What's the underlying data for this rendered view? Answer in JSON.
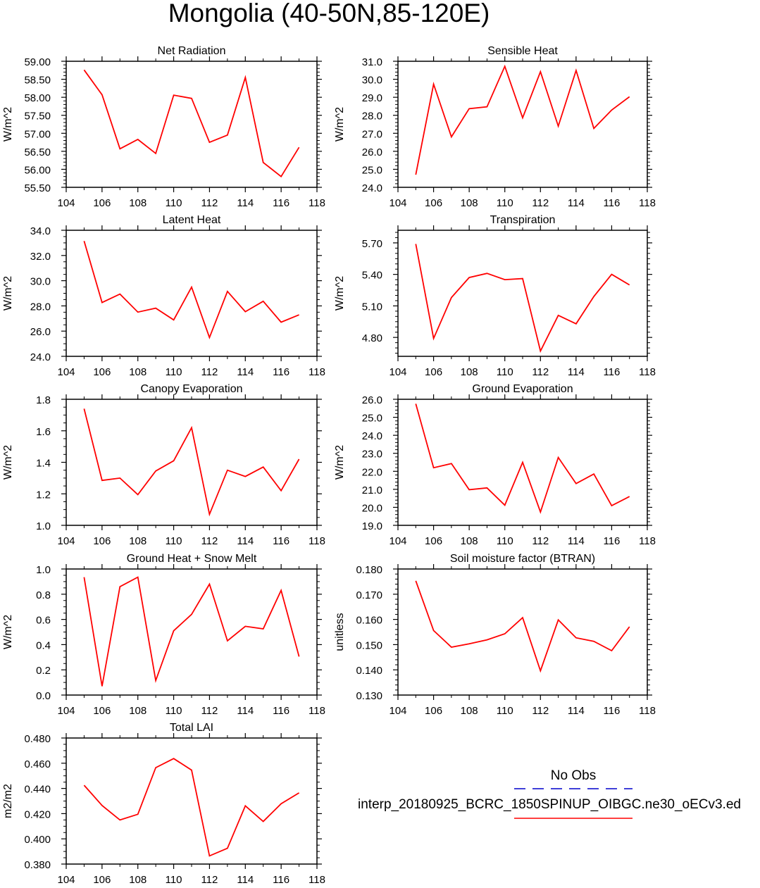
{
  "title": "Mongolia (40-50N,85-120E)",
  "legend": {
    "obs_label": "No Obs",
    "model_label": "interp_20180925_BCRC_1850SPINUP_OIBGC.ne30_oECv3.ed",
    "obs_color": "#0000cc",
    "model_color": "#ff0000"
  },
  "chart_data": [
    {
      "type": "line",
      "title": "Net Radiation",
      "ylabel": "W/m^2",
      "xlabel": "",
      "xlim": [
        104,
        118
      ],
      "xticks": [
        104,
        106,
        108,
        110,
        112,
        114,
        116,
        118
      ],
      "ylim": [
        55.5,
        59.0
      ],
      "yticks": [
        55.5,
        56.0,
        56.5,
        57.0,
        57.5,
        58.0,
        58.5,
        59.0
      ],
      "ytick_labels": [
        "55.50",
        "56.00",
        "56.50",
        "57.00",
        "57.50",
        "58.00",
        "58.50",
        "59.00"
      ],
      "yminor": 5,
      "x": [
        105,
        106,
        107,
        108,
        109,
        110,
        111,
        112,
        113,
        114,
        115,
        116,
        117
      ],
      "series": [
        {
          "name": "model",
          "color": "#ff0000",
          "values": [
            58.76,
            58.07,
            56.57,
            56.83,
            56.44,
            58.06,
            57.97,
            56.75,
            56.95,
            58.55,
            56.19,
            55.8,
            56.61
          ]
        }
      ]
    },
    {
      "type": "line",
      "title": "Sensible Heat",
      "ylabel": "W/m^2",
      "xlabel": "",
      "xlim": [
        104,
        118
      ],
      "xticks": [
        104,
        106,
        108,
        110,
        112,
        114,
        116,
        118
      ],
      "ylim": [
        24.0,
        31.0
      ],
      "yticks": [
        24,
        25,
        26,
        27,
        28,
        29,
        30,
        31
      ],
      "ytick_labels": [
        "24.0",
        "25.0",
        "26.0",
        "27.0",
        "28.0",
        "29.0",
        "30.0",
        "31.0"
      ],
      "yminor": 5,
      "x": [
        105,
        106,
        107,
        108,
        109,
        110,
        111,
        112,
        113,
        114,
        115,
        116,
        117
      ],
      "series": [
        {
          "name": "model",
          "color": "#ff0000",
          "values": [
            24.7,
            29.73,
            26.8,
            28.37,
            28.47,
            30.72,
            27.86,
            30.42,
            27.4,
            30.49,
            27.27,
            28.29,
            29.03
          ]
        }
      ]
    },
    {
      "type": "line",
      "title": "Latent Heat",
      "ylabel": "W/m^2",
      "xlabel": "",
      "xlim": [
        104,
        118
      ],
      "xticks": [
        104,
        106,
        108,
        110,
        112,
        114,
        116,
        118
      ],
      "ylim": [
        24.0,
        34.0
      ],
      "yticks": [
        24,
        26,
        28,
        30,
        32,
        34
      ],
      "ytick_labels": [
        "24.0",
        "26.0",
        "28.0",
        "30.0",
        "32.0",
        "34.0"
      ],
      "yminor": 4,
      "x": [
        105,
        106,
        107,
        108,
        109,
        110,
        111,
        112,
        113,
        114,
        115,
        116,
        117
      ],
      "series": [
        {
          "name": "model",
          "color": "#ff0000",
          "values": [
            33.15,
            28.27,
            28.94,
            27.51,
            27.82,
            26.89,
            29.49,
            25.49,
            29.15,
            27.54,
            28.37,
            26.71,
            27.29
          ]
        }
      ]
    },
    {
      "type": "line",
      "title": "Transpiration",
      "ylabel": "W/m^2",
      "xlabel": "",
      "xlim": [
        104,
        118
      ],
      "xticks": [
        104,
        106,
        108,
        110,
        112,
        114,
        116,
        118
      ],
      "ylim": [
        4.62,
        5.82
      ],
      "yticks": [
        4.8,
        5.1,
        5.4,
        5.7
      ],
      "ytick_labels": [
        "4.80",
        "5.10",
        "5.40",
        "5.70"
      ],
      "yminor": 6,
      "x": [
        105,
        106,
        107,
        108,
        109,
        110,
        111,
        112,
        113,
        114,
        115,
        116,
        117
      ],
      "series": [
        {
          "name": "model",
          "color": "#ff0000",
          "values": [
            5.69,
            4.79,
            5.18,
            5.37,
            5.41,
            5.35,
            5.36,
            4.67,
            5.01,
            4.93,
            5.19,
            5.4,
            5.3
          ]
        }
      ]
    },
    {
      "type": "line",
      "title": "Canopy Evaporation",
      "ylabel": "W/m^2",
      "xlabel": "",
      "xlim": [
        104,
        118
      ],
      "xticks": [
        104,
        106,
        108,
        110,
        112,
        114,
        116,
        118
      ],
      "ylim": [
        1.0,
        1.8
      ],
      "yticks": [
        1.0,
        1.2,
        1.4,
        1.6,
        1.8
      ],
      "ytick_labels": [
        "1.0",
        "1.2",
        "1.4",
        "1.6",
        "1.8"
      ],
      "yminor": 4,
      "x": [
        105,
        106,
        107,
        108,
        109,
        110,
        111,
        112,
        113,
        114,
        115,
        116,
        117
      ],
      "series": [
        {
          "name": "model",
          "color": "#ff0000",
          "values": [
            1.74,
            1.285,
            1.3,
            1.195,
            1.345,
            1.41,
            1.62,
            1.07,
            1.35,
            1.31,
            1.37,
            1.22,
            1.42
          ]
        }
      ]
    },
    {
      "type": "line",
      "title": "Ground Evaporation",
      "ylabel": "W/m^2",
      "xlabel": "",
      "xlim": [
        104,
        118
      ],
      "xticks": [
        104,
        106,
        108,
        110,
        112,
        114,
        116,
        118
      ],
      "ylim": [
        19.0,
        26.0
      ],
      "yticks": [
        19,
        20,
        21,
        22,
        23,
        24,
        25,
        26
      ],
      "ytick_labels": [
        "19.0",
        "20.0",
        "21.0",
        "22.0",
        "23.0",
        "24.0",
        "25.0",
        "26.0"
      ],
      "yminor": 5,
      "x": [
        105,
        106,
        107,
        108,
        109,
        110,
        111,
        112,
        113,
        114,
        115,
        116,
        117
      ],
      "series": [
        {
          "name": "model",
          "color": "#ff0000",
          "values": [
            25.75,
            22.2,
            22.43,
            20.98,
            21.08,
            20.12,
            22.5,
            19.74,
            22.77,
            21.32,
            21.85,
            20.09,
            20.6
          ]
        }
      ]
    },
    {
      "type": "line",
      "title": "Ground Heat + Snow Melt",
      "ylabel": "W/m^2",
      "xlabel": "",
      "xlim": [
        104,
        118
      ],
      "xticks": [
        104,
        106,
        108,
        110,
        112,
        114,
        116,
        118
      ],
      "ylim": [
        0.0,
        1.0
      ],
      "yticks": [
        0.0,
        0.2,
        0.4,
        0.6,
        0.8,
        1.0
      ],
      "ytick_labels": [
        "0.0",
        "0.2",
        "0.4",
        "0.6",
        "0.8",
        "1.0"
      ],
      "yminor": 4,
      "x": [
        105,
        106,
        107,
        108,
        109,
        110,
        111,
        112,
        113,
        114,
        115,
        116,
        117
      ],
      "series": [
        {
          "name": "model",
          "color": "#ff0000",
          "values": [
            0.935,
            0.07,
            0.86,
            0.935,
            0.115,
            0.51,
            0.64,
            0.88,
            0.43,
            0.545,
            0.525,
            0.83,
            0.305
          ]
        }
      ]
    },
    {
      "type": "line",
      "title": "Soil moisture factor (BTRAN)",
      "ylabel": "unitless",
      "xlabel": "",
      "xlim": [
        104,
        118
      ],
      "xticks": [
        104,
        106,
        108,
        110,
        112,
        114,
        116,
        118
      ],
      "ylim": [
        0.13,
        0.18
      ],
      "yticks": [
        0.13,
        0.14,
        0.15,
        0.16,
        0.17,
        0.18
      ],
      "ytick_labels": [
        "0.130",
        "0.140",
        "0.150",
        "0.160",
        "0.170",
        "0.180"
      ],
      "yminor": 5,
      "x": [
        105,
        106,
        107,
        108,
        109,
        110,
        111,
        112,
        113,
        114,
        115,
        116,
        117
      ],
      "series": [
        {
          "name": "model",
          "color": "#ff0000",
          "values": [
            0.1753,
            0.1556,
            0.149,
            0.1503,
            0.1519,
            0.1543,
            0.1607,
            0.1396,
            0.1598,
            0.1527,
            0.1513,
            0.1476,
            0.1571
          ]
        }
      ]
    },
    {
      "type": "line",
      "title": "Total LAI",
      "ylabel": "m2/m2",
      "xlabel": "",
      "xlim": [
        104,
        118
      ],
      "xticks": [
        104,
        106,
        108,
        110,
        112,
        114,
        116,
        118
      ],
      "ylim": [
        0.38,
        0.48
      ],
      "yticks": [
        0.38,
        0.4,
        0.42,
        0.44,
        0.46,
        0.48
      ],
      "ytick_labels": [
        "0.380",
        "0.400",
        "0.420",
        "0.440",
        "0.460",
        "0.480"
      ],
      "yminor": 4,
      "x": [
        105,
        106,
        107,
        108,
        109,
        110,
        111,
        112,
        113,
        114,
        115,
        116,
        117
      ],
      "series": [
        {
          "name": "model",
          "color": "#ff0000",
          "values": [
            0.4425,
            0.4265,
            0.415,
            0.4195,
            0.4565,
            0.4637,
            0.4545,
            0.3865,
            0.3925,
            0.4262,
            0.4138,
            0.4278,
            0.4365
          ]
        }
      ]
    }
  ]
}
